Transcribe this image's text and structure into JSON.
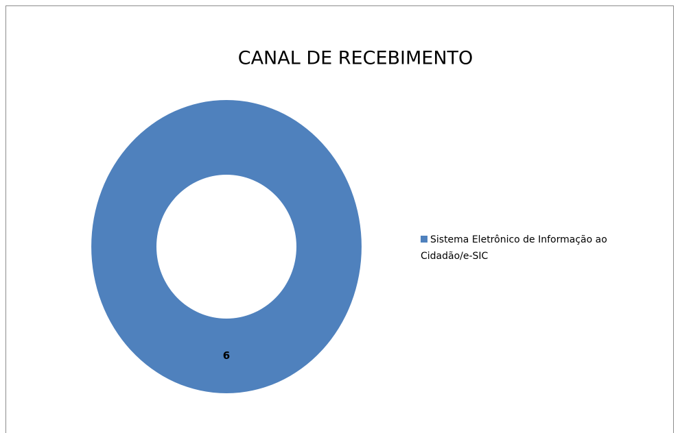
{
  "chart_data": {
    "type": "donut",
    "title": "CANAL DE RECEBIMENTO",
    "categories": [
      "Sistema Eletrônico de Informação ao Cidadão/e-SIC"
    ],
    "values": [
      6
    ],
    "colors": [
      "#4f81bd"
    ],
    "legend": "right"
  }
}
